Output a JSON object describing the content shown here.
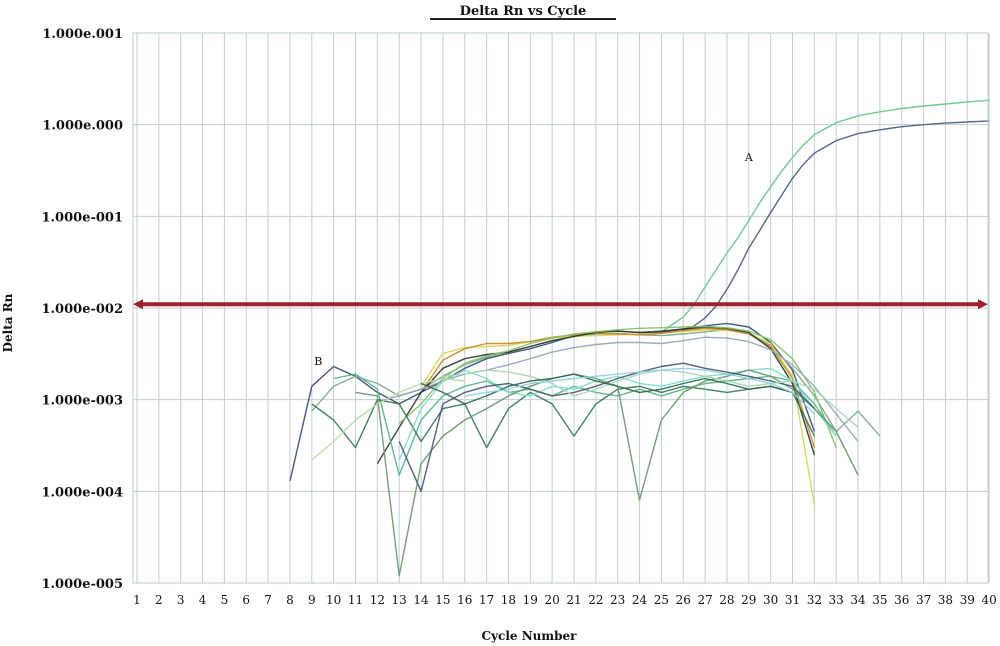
{
  "chart_data": {
    "type": "line",
    "title": "Delta Rn vs Cycle",
    "xlabel": "Cycle Number",
    "ylabel": "Delta Rn",
    "y_scale": "log",
    "ylim": [
      1e-05,
      10
    ],
    "xlim": [
      1,
      40
    ],
    "x_ticks": [
      1,
      2,
      3,
      4,
      5,
      6,
      7,
      8,
      9,
      10,
      11,
      12,
      13,
      14,
      15,
      16,
      17,
      18,
      19,
      20,
      21,
      22,
      23,
      24,
      25,
      26,
      27,
      28,
      29,
      30,
      31,
      32,
      33,
      34,
      35,
      36,
      37,
      38,
      39,
      40
    ],
    "y_tick_labels": [
      "1.000e-005",
      "1.000e-004",
      "1.000e-003",
      "1.000e-002",
      "1.000e-001",
      "1.000e.000",
      "1.000e.001"
    ],
    "y_tick_values": [
      1e-05,
      0.0001,
      0.001,
      0.01,
      0.1,
      1,
      10
    ],
    "grid": true,
    "threshold": 0.011,
    "threshold_color": "#9e1f2e",
    "annotations": [
      {
        "text": "A",
        "x": 29.0,
        "y": 0.4
      },
      {
        "text": "B",
        "x": 9.3,
        "y": 0.0024
      }
    ],
    "series": [
      {
        "color": "#6cc48e",
        "x": [
          25,
          25.5,
          26,
          26.5,
          27,
          27.5,
          28,
          28.5,
          29,
          29.5,
          30,
          30.5,
          31,
          31.5,
          32,
          33,
          34,
          35,
          36,
          37,
          38,
          39,
          40
        ],
        "y": [
          0.0055,
          0.0066,
          0.008,
          0.011,
          0.017,
          0.026,
          0.04,
          0.058,
          0.09,
          0.14,
          0.21,
          0.31,
          0.44,
          0.6,
          0.78,
          1.05,
          1.25,
          1.38,
          1.5,
          1.6,
          1.68,
          1.77,
          1.85
        ]
      },
      {
        "color": "#4c5f8c",
        "x": [
          26,
          26.5,
          27,
          27.5,
          28,
          28.5,
          29,
          29.5,
          30,
          30.5,
          31,
          31.5,
          32,
          33,
          34,
          35,
          36,
          37,
          38,
          39,
          40
        ],
        "y": [
          0.0055,
          0.0064,
          0.0078,
          0.0105,
          0.016,
          0.026,
          0.045,
          0.07,
          0.11,
          0.17,
          0.26,
          0.37,
          0.49,
          0.67,
          0.8,
          0.88,
          0.95,
          1.0,
          1.04,
          1.07,
          1.1
        ]
      },
      {
        "color": "#3d4f7a",
        "x": [
          8,
          9,
          10,
          11,
          12,
          13,
          14,
          15,
          16,
          17,
          18,
          19,
          20,
          21,
          22,
          23,
          24,
          25,
          26,
          27,
          28,
          29,
          30,
          31,
          32
        ],
        "y": [
          0.00013,
          0.0014,
          0.0023,
          0.0018,
          0.0012,
          0.0009,
          0.0012,
          0.0016,
          0.0022,
          0.0028,
          0.0032,
          0.0036,
          0.0042,
          0.005,
          0.0055,
          0.0056,
          0.0054,
          0.0056,
          0.0059,
          0.0064,
          0.0068,
          0.0062,
          0.0042,
          0.0021,
          0.00045
        ]
      },
      {
        "color": "#7fa88c",
        "x": [
          9,
          10,
          11,
          12,
          13,
          14,
          15,
          16,
          17,
          18,
          19,
          20,
          21,
          22,
          23,
          24,
          25,
          26,
          27,
          28,
          29,
          30,
          31,
          32,
          33,
          34,
          35
        ],
        "y": [
          0.00075,
          0.0014,
          0.0018,
          0.0015,
          0.0011,
          0.0013,
          0.0018,
          0.0024,
          0.0029,
          0.0033,
          0.0038,
          0.0044,
          0.0049,
          0.0052,
          0.0053,
          0.0051,
          0.005,
          0.0052,
          0.0055,
          0.0058,
          0.0052,
          0.0039,
          0.0022,
          0.0011,
          0.00045,
          0.00075,
          0.0004
        ]
      },
      {
        "color": "#d6d65e",
        "x": [
          14,
          15,
          16,
          17,
          18,
          19,
          20,
          21,
          22,
          23,
          24,
          25,
          26,
          27,
          28,
          29,
          30,
          31,
          32
        ],
        "y": [
          0.0014,
          0.0032,
          0.0037,
          0.0038,
          0.0039,
          0.0043,
          0.0047,
          0.0049,
          0.005,
          0.0051,
          0.0052,
          0.0054,
          0.0055,
          0.0058,
          0.0057,
          0.0053,
          0.0041,
          0.0018,
          7e-05
        ]
      },
      {
        "color": "#c98a2a",
        "x": [
          14,
          15,
          16,
          17,
          18,
          19,
          20,
          21,
          22,
          23,
          24,
          25,
          26,
          27,
          28,
          29,
          30,
          31,
          32
        ],
        "y": [
          0.0012,
          0.0027,
          0.0036,
          0.0041,
          0.0041,
          0.0043,
          0.0048,
          0.0051,
          0.0053,
          0.0052,
          0.0051,
          0.0053,
          0.0057,
          0.006,
          0.0058,
          0.0052,
          0.0038,
          0.0017,
          0.0003
        ]
      },
      {
        "color": "#2d3a2e",
        "x": [
          12,
          13,
          14,
          15,
          16,
          17,
          18,
          19,
          20,
          21,
          22,
          23,
          24,
          25,
          26,
          27,
          28,
          29,
          30,
          31,
          32
        ],
        "y": [
          0.0002,
          0.0005,
          0.0012,
          0.0022,
          0.0028,
          0.0031,
          0.0033,
          0.0038,
          0.0044,
          0.0049,
          0.0054,
          0.0056,
          0.0054,
          0.0055,
          0.0059,
          0.0062,
          0.006,
          0.0054,
          0.0036,
          0.0015,
          0.00025
        ]
      },
      {
        "color": "#88c26a",
        "x": [
          13,
          14,
          15,
          16,
          17,
          18,
          19,
          20,
          21,
          22,
          23,
          24,
          25,
          26,
          27,
          28,
          29,
          30,
          31,
          32,
          33
        ],
        "y": [
          0.00055,
          0.0009,
          0.0017,
          0.0025,
          0.003,
          0.0034,
          0.0041,
          0.0047,
          0.0052,
          0.0055,
          0.0058,
          0.006,
          0.0061,
          0.0062,
          0.0063,
          0.0061,
          0.0056,
          0.0045,
          0.0028,
          0.0012,
          0.0003
        ]
      },
      {
        "color": "#9aa7b8",
        "x": [
          12,
          13,
          14,
          15,
          16,
          17,
          18,
          19,
          20,
          21,
          22,
          23,
          24,
          25,
          26,
          27,
          28,
          29,
          30,
          31,
          32,
          33,
          34
        ],
        "y": [
          0.00095,
          0.0011,
          0.0013,
          0.0016,
          0.0019,
          0.0021,
          0.0024,
          0.0028,
          0.0033,
          0.0037,
          0.004,
          0.0042,
          0.0042,
          0.0041,
          0.0044,
          0.0048,
          0.0047,
          0.0043,
          0.0035,
          0.0024,
          0.0014,
          0.0007,
          0.00035
        ]
      },
      {
        "color": "#5bb58a",
        "x": [
          10,
          11,
          12,
          13,
          14,
          15,
          16,
          17,
          18,
          19,
          20,
          21,
          22,
          23,
          24,
          25,
          26,
          27,
          28,
          29,
          30,
          31,
          32,
          33
        ],
        "y": [
          0.0017,
          0.0019,
          0.0013,
          0.00015,
          0.0006,
          0.0011,
          0.0014,
          0.0016,
          0.0012,
          0.0013,
          0.0011,
          0.0014,
          0.0012,
          0.0011,
          0.0013,
          0.0011,
          0.0013,
          0.0015,
          0.0016,
          0.0017,
          0.0018,
          0.0016,
          0.0009,
          0.0004
        ]
      },
      {
        "color": "#3a7a5a",
        "x": [
          9,
          10,
          11,
          12,
          13,
          14,
          15,
          16,
          17,
          18,
          19,
          20,
          21,
          22,
          23,
          24,
          25,
          26,
          27,
          28,
          29,
          30,
          31,
          32
        ],
        "y": [
          0.0009,
          0.0006,
          0.0003,
          0.001,
          0.0009,
          0.00035,
          0.0008,
          0.0009,
          0.0003,
          0.0008,
          0.0012,
          0.0009,
          0.0004,
          0.0009,
          0.0013,
          0.0014,
          0.0012,
          0.0014,
          0.0013,
          0.0012,
          0.0013,
          0.0014,
          0.0012,
          0.0004
        ]
      },
      {
        "color": "#7ddccc",
        "x": [
          13,
          14,
          15,
          16,
          17,
          18,
          19,
          20,
          21,
          22,
          23,
          24,
          25,
          26,
          27,
          28,
          29,
          30,
          31,
          32,
          33
        ],
        "y": [
          0.00022,
          0.0008,
          0.0016,
          0.0021,
          0.0017,
          0.0012,
          0.0011,
          0.0014,
          0.0013,
          0.0016,
          0.0018,
          0.0015,
          0.0014,
          0.0016,
          0.0018,
          0.0019,
          0.0021,
          0.0022,
          0.0016,
          0.0008,
          0.0004
        ]
      },
      {
        "color": "#6b9a6b",
        "x": [
          11,
          12,
          13,
          14,
          15,
          16,
          17,
          18,
          19,
          20,
          21,
          22,
          23,
          24,
          25,
          26,
          27,
          28,
          29,
          30,
          31,
          32,
          33,
          34
        ],
        "y": [
          0.0012,
          0.0011,
          1.2e-05,
          0.0002,
          0.0004,
          0.0006,
          0.0008,
          0.0011,
          0.0014,
          0.0017,
          0.0019,
          0.0017,
          0.0014,
          8e-05,
          0.0006,
          0.0012,
          0.0016,
          0.0018,
          0.0021,
          0.0018,
          0.0013,
          0.0008,
          0.00045,
          0.00015
        ]
      },
      {
        "color": "#4a5a7a",
        "x": [
          13,
          14,
          15,
          16,
          17,
          18,
          19,
          20,
          21,
          22,
          23,
          24,
          25,
          26,
          27,
          28,
          29,
          30,
          31,
          32
        ],
        "y": [
          0.00035,
          0.0001,
          0.0009,
          0.0012,
          0.0014,
          0.0015,
          0.0013,
          0.0011,
          0.0012,
          0.0014,
          0.0017,
          0.002,
          0.0023,
          0.0025,
          0.0022,
          0.002,
          0.0018,
          0.0016,
          0.0014,
          0.0008
        ]
      },
      {
        "color": "#a9d6b4",
        "x": [
          15,
          16,
          17,
          18,
          19,
          20,
          21,
          22,
          23,
          24,
          25,
          26,
          27,
          28,
          29,
          30,
          31,
          32,
          33,
          34
        ],
        "y": [
          0.0018,
          0.0019,
          0.0021,
          0.002,
          0.0018,
          0.0015,
          0.0011,
          0.0013,
          0.0016,
          0.0019,
          0.0021,
          0.002,
          0.0018,
          0.0016,
          0.0014,
          0.0015,
          0.0016,
          0.0013,
          0.0008,
          0.0005
        ]
      },
      {
        "color": "#b8d8a8",
        "x": [
          9,
          10,
          11,
          12,
          13,
          14,
          15,
          16
        ],
        "y": [
          0.00022,
          0.00035,
          0.0006,
          0.0009,
          0.0012,
          0.0015,
          0.0017,
          0.0016
        ]
      },
      {
        "color": "#2f6a4a",
        "x": [
          14,
          15,
          16,
          17,
          18,
          19,
          20,
          21,
          22,
          23,
          24,
          25,
          26,
          27,
          28,
          29,
          30,
          31
        ],
        "y": [
          0.0015,
          0.0012,
          0.0009,
          0.0011,
          0.0014,
          0.0016,
          0.0017,
          0.0019,
          0.0016,
          0.0014,
          0.0012,
          0.0013,
          0.0015,
          0.0017,
          0.0015,
          0.0013,
          0.0014,
          0.0012
        ]
      },
      {
        "color": "#8fd1e0",
        "x": [
          16,
          17,
          18,
          19,
          20,
          21,
          22,
          23,
          24,
          25,
          26,
          27,
          28,
          29,
          30,
          31,
          32
        ],
        "y": [
          0.0011,
          0.0012,
          0.0013,
          0.0015,
          0.0016,
          0.0017,
          0.0018,
          0.0019,
          0.002,
          0.0021,
          0.0022,
          0.0021,
          0.0019,
          0.0017,
          0.0015,
          0.0012,
          0.0007
        ]
      }
    ]
  }
}
